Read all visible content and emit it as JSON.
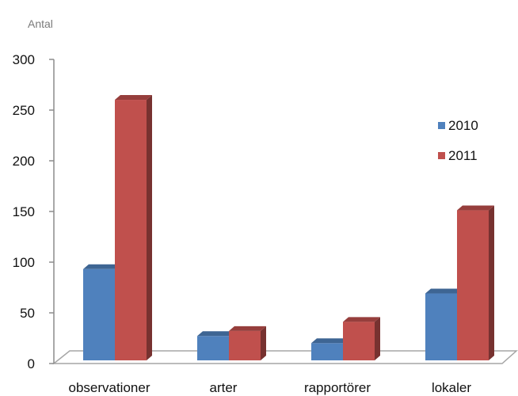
{
  "chart_data": {
    "type": "bar",
    "ylabel": "Antal",
    "categories": [
      "observationer",
      "arter",
      "rapportörer",
      "lokaler"
    ],
    "series": [
      {
        "name": "2010",
        "values": [
          90,
          24,
          17,
          66
        ],
        "color": "#4F81BD"
      },
      {
        "name": "2011",
        "values": [
          257,
          29,
          38,
          148
        ],
        "color": "#C0504D"
      }
    ],
    "ylim": [
      0,
      300
    ],
    "yticks": [
      0,
      50,
      100,
      150,
      200,
      250,
      300
    ],
    "grid": false,
    "legend": "right"
  }
}
